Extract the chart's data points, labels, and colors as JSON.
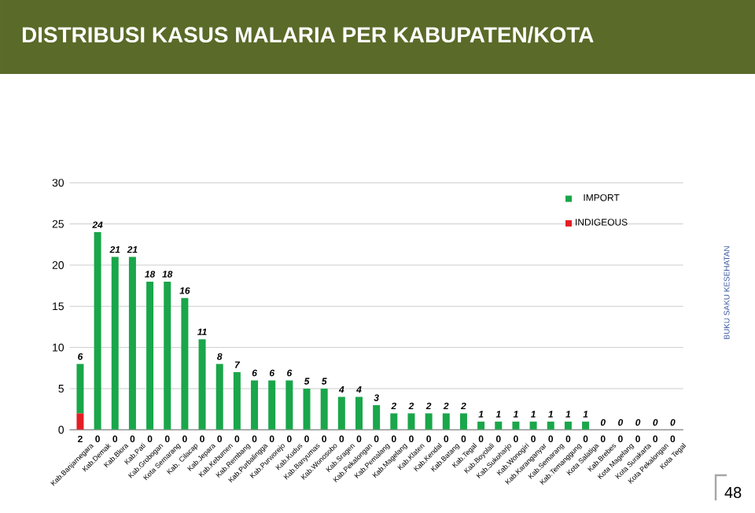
{
  "chart_data": {
    "type": "bar",
    "title": "DISTRIBUSI KASUS MALARIA PER KABUPATEN/KOTA",
    "categories": [
      "Kab.Banjarnegara",
      "Kab.Demak",
      "Kab.Blora",
      "Kab.Pati",
      "Kab.Grobogan",
      "Kota Semarang",
      "Kab. Cilacap",
      "Kab.Jepara",
      "Kab.Kebumen",
      "Kab.Rembang",
      "Kab.Purbalingga",
      "Kab.Purworejo",
      "Kab.Kudus",
      "Kab.Banyumas",
      "Kab.Wonosobo",
      "Kab.Sragen",
      "Kab.Pekalongan",
      "Kab.Pemalang",
      "Kab.Magelang",
      "Kab.Klaten",
      "Kab.Kendal",
      "Kab.Batang",
      "Kab.Tegal",
      "Kab.Boyolali",
      "Kab.Sukoharjo",
      "Kab.Wonogiri",
      "Kab.Karanganyar",
      "Kab.Semarang",
      "Kab.Temanggung",
      "Kota Salatiga",
      "Kab.Brebes",
      "Kota Magelang",
      "Kota Surakarta",
      "Kota Pekalongan",
      "Kota Tegal"
    ],
    "series": [
      {
        "name": "INDIGEOUS",
        "color": "#e31e24",
        "values": [
          2,
          0,
          0,
          0,
          0,
          0,
          0,
          0,
          0,
          0,
          0,
          0,
          0,
          0,
          0,
          0,
          0,
          0,
          0,
          0,
          0,
          0,
          0,
          0,
          0,
          0,
          0,
          0,
          0,
          0,
          0,
          0,
          0,
          0,
          0
        ]
      },
      {
        "name": "IMPORT",
        "color": "#1aa64a",
        "values": [
          6,
          24,
          21,
          21,
          18,
          18,
          16,
          11,
          8,
          7,
          6,
          6,
          6,
          5,
          5,
          4,
          4,
          3,
          2,
          2,
          2,
          2,
          2,
          1,
          1,
          1,
          1,
          1,
          1,
          1,
          0,
          0,
          0,
          0,
          0
        ]
      }
    ],
    "stacked": true,
    "data_labels": true,
    "ylim": [
      0,
      30
    ],
    "yticks": [
      0,
      5,
      10,
      15,
      20,
      25,
      30
    ],
    "grid": "y",
    "legend": "top right",
    "annotations": [
      "BUKU SAKU KESEHATAN",
      "48"
    ]
  }
}
